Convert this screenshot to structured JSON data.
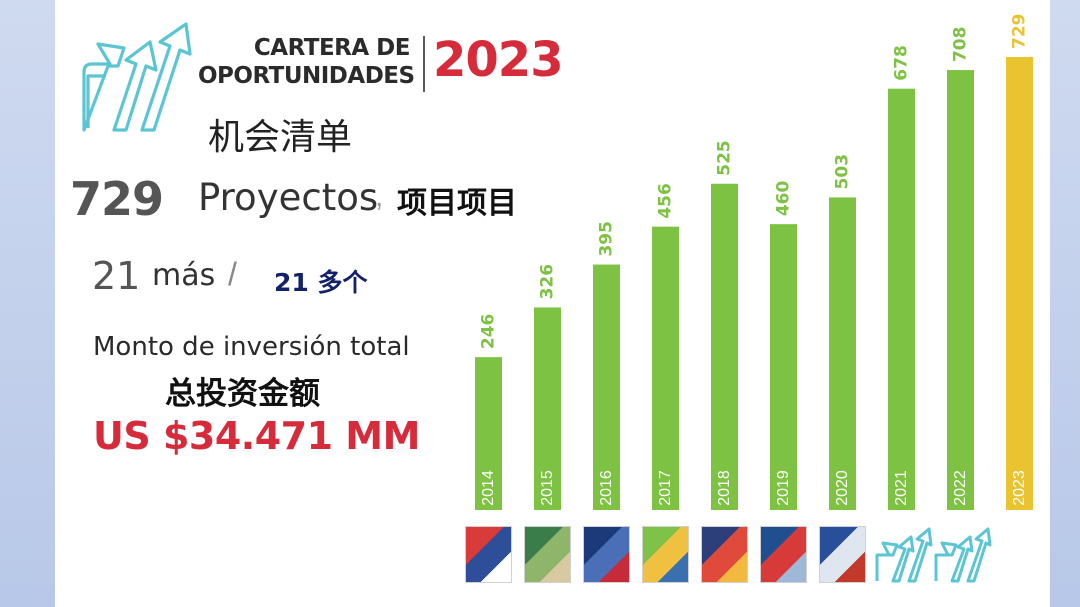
{
  "brand": {
    "line1": "CARTERA DE",
    "line2": "OPORTUNIDADES",
    "year": "2023",
    "cn_title": "机会清单"
  },
  "summary": {
    "projects_count": "729",
    "projects_label": "Proyectos",
    "projects_sep": ",",
    "projects_cn": "项目项目",
    "more_count": "21",
    "more_label": "más",
    "more_slash": "/",
    "more_cn": "21 多个",
    "investment_label": "Monto de inversión total",
    "investment_cn": "总投资金额",
    "investment_amount": "US $34.471 MM"
  },
  "colors": {
    "bar": "#7dc242",
    "bar_highlight": "#eac331",
    "brand_red": "#d52b3a",
    "logo_teal": "#5bc5d4"
  },
  "chart_data": {
    "type": "bar",
    "categories": [
      "2014",
      "2015",
      "2016",
      "2017",
      "2018",
      "2019",
      "2020",
      "2021",
      "2022",
      "2023"
    ],
    "values": [
      246,
      326,
      395,
      456,
      525,
      460,
      503,
      678,
      708,
      729
    ],
    "highlight": "2023",
    "title": "",
    "xlabel": "",
    "ylabel": "",
    "ylim": [
      0,
      729
    ],
    "grid": false,
    "legend": "none"
  },
  "thumbnails": [
    {
      "year": "2014",
      "colors": [
        "#d93a3a",
        "#2e4e9a",
        "#ffffff"
      ]
    },
    {
      "year": "2015",
      "colors": [
        "#3b7d4a",
        "#8fb56b",
        "#d9c9a0"
      ]
    },
    {
      "year": "2016",
      "colors": [
        "#1c3a78",
        "#4a6fb8",
        "#c72b3a"
      ]
    },
    {
      "year": "2017",
      "colors": [
        "#7fc24a",
        "#f0c040",
        "#3a6fb0"
      ]
    },
    {
      "year": "2018",
      "colors": [
        "#2c3f7a",
        "#e04a3a",
        "#f2b840"
      ]
    },
    {
      "year": "2019",
      "colors": [
        "#1f4f8f",
        "#d83a3a",
        "#9fb8d8"
      ]
    },
    {
      "year": "2020",
      "colors": [
        "#2a4f9a",
        "#dfe6f0",
        "#c0392b"
      ]
    },
    {
      "year": "2021",
      "icon": "arrows-logo-icon"
    },
    {
      "year": "2022",
      "icon": "arrows-logo-icon"
    }
  ]
}
